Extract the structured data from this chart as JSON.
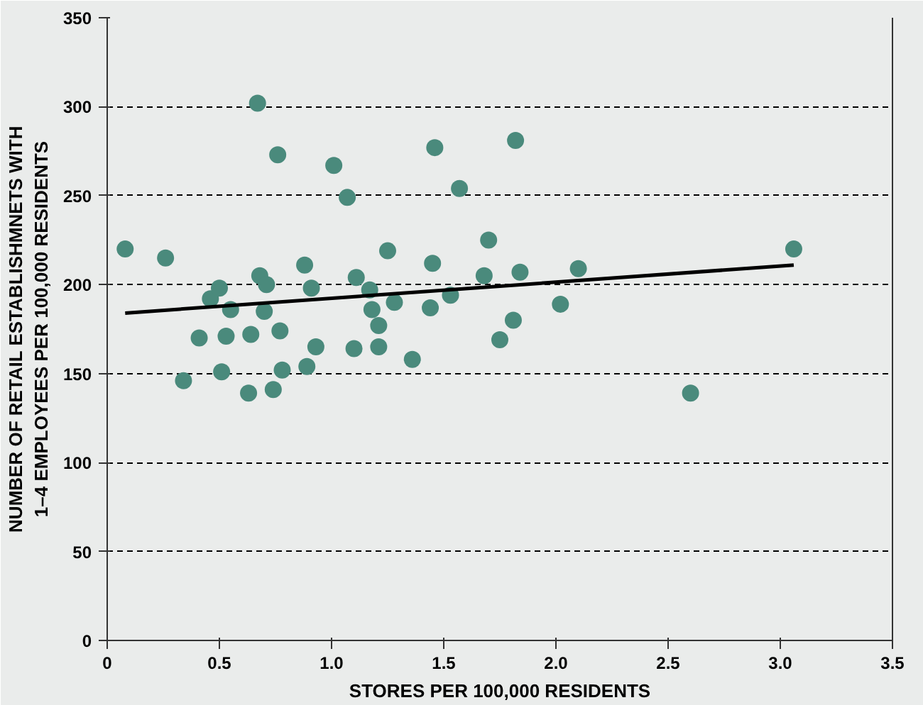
{
  "chart_data": {
    "type": "scatter",
    "xlabel": "STORES PER 100,000 RESIDENTS",
    "ylabel": "NUMBER OF RETAIL ESTABLISHMNETS WITH\n1–4 EMPLOYEES PER 100,000 RESIDENTS",
    "xlim": [
      0,
      3.5
    ],
    "ylim": [
      0,
      350
    ],
    "xticks": [
      0,
      {
        "value": 0.5,
        "label": "0.5"
      },
      {
        "value": 1,
        "label": "1.0"
      },
      {
        "value": 1.5,
        "label": "1.5"
      },
      {
        "value": 2,
        "label": "2.0"
      },
      {
        "value": 2.5,
        "label": "2.5"
      },
      {
        "value": 3,
        "label": "3.0"
      },
      {
        "value": 3.5,
        "label": "3.5"
      }
    ],
    "yticks": [
      0,
      50,
      100,
      150,
      200,
      250,
      300,
      350
    ],
    "grid": "y",
    "marker": "circle",
    "series": [
      {
        "color": "#4a8a7c",
        "x": [
          0.08,
          0.26,
          0.34,
          0.41,
          0.46,
          0.5,
          0.51,
          0.53,
          0.55,
          0.63,
          0.64,
          0.67,
          0.68,
          0.7,
          0.71,
          0.74,
          0.76,
          0.77,
          0.78,
          0.88,
          0.89,
          0.91,
          0.93,
          1.01,
          1.07,
          1.1,
          1.11,
          1.17,
          1.18,
          1.21,
          1.21,
          1.25,
          1.28,
          1.36,
          1.44,
          1.46,
          1.45,
          1.53,
          1.57,
          1.68,
          1.7,
          1.75,
          1.81,
          1.82,
          1.84,
          2.02,
          2.1,
          2.6,
          3.06
        ],
        "values": [
          220,
          215,
          146,
          170,
          192,
          198,
          151,
          171,
          186,
          139,
          172,
          302,
          205,
          185,
          200,
          141,
          273,
          174,
          152,
          211,
          154,
          198,
          165,
          267,
          249,
          164,
          204,
          197,
          186,
          165,
          177,
          219,
          190,
          158,
          187,
          277,
          212,
          194,
          254,
          205,
          225,
          169,
          180,
          281,
          207,
          189,
          209,
          139,
          220
        ]
      },
      {
        "type": "line",
        "marker": "none",
        "color": "#000000",
        "x": [
          0.08,
          3.06
        ],
        "values": [
          184,
          211
        ]
      }
    ]
  }
}
